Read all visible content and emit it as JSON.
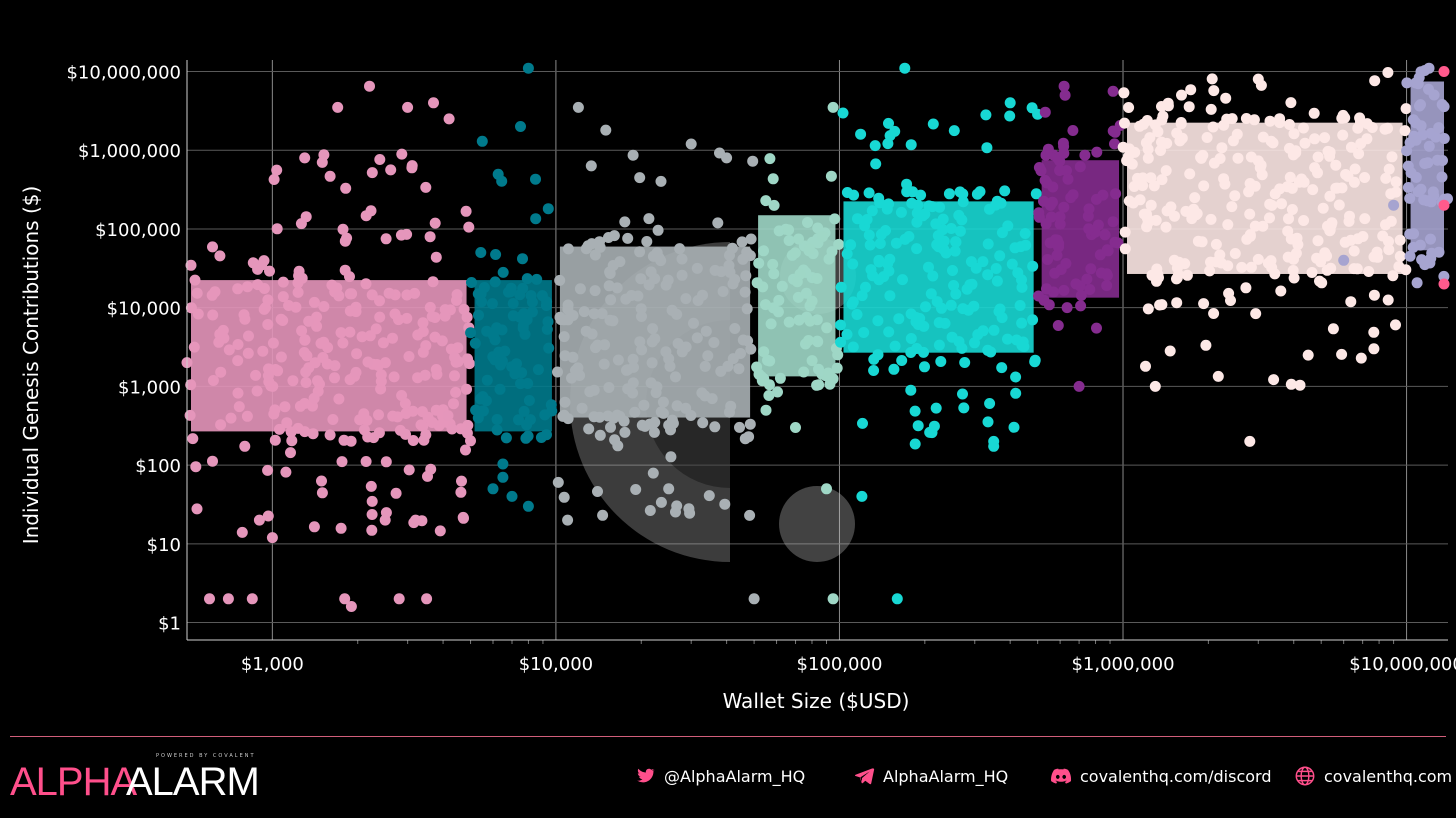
{
  "chart_data": {
    "type": "scatter",
    "title": "",
    "xlabel": "Wallet Size ($USD)",
    "ylabel": "Individual Genesis Contributions ($)",
    "x_scale": "log",
    "y_scale": "log",
    "xlim": [
      500,
      14000000
    ],
    "ylim": [
      0.6,
      14000000
    ],
    "x_ticks": [
      1000,
      10000,
      100000,
      1000000,
      10000000
    ],
    "x_tick_labels": [
      "$1,000",
      "$10,000",
      "$100,000",
      "$1,000,000",
      "$10,000,000"
    ],
    "y_ticks": [
      1,
      10,
      100,
      1000,
      10000,
      100000,
      1000000,
      10000000
    ],
    "y_tick_labels": [
      "$1",
      "$10",
      "$100",
      "$1,000",
      "$10,000",
      "$100,000",
      "$1,000,000",
      "$10,000,000"
    ],
    "grid": true,
    "legend": "none",
    "series": [
      {
        "x_range": [
          500,
          5000
        ],
        "color": "#e596bb",
        "core_y": [
          200,
          30000
        ],
        "spread_y": [
          12,
          1000000
        ],
        "outliers": [
          [
            600,
            2
          ],
          [
            700,
            2
          ],
          [
            850,
            2
          ],
          [
            1800,
            2
          ],
          [
            1900,
            1.6
          ],
          [
            2800,
            2
          ],
          [
            3500,
            2
          ],
          [
            2200,
            6500000
          ],
          [
            1700,
            3500000
          ],
          [
            3000,
            3500000
          ],
          [
            3700,
            4000000
          ],
          [
            4200,
            2500000
          ],
          [
            1300,
            800000
          ],
          [
            1500,
            700000
          ],
          [
            900,
            20
          ],
          [
            1000,
            12
          ],
          [
            2500,
            20
          ],
          [
            3200,
            20
          ]
        ]
      },
      {
        "x_range": [
          5000,
          10000
        ],
        "color": "#007a8c",
        "core_y": [
          200,
          30000
        ],
        "spread_y": [
          40,
          500000
        ],
        "outliers": [
          [
            8000,
            11000000
          ],
          [
            7500,
            2000000
          ],
          [
            5500,
            1300000
          ],
          [
            6000,
            50
          ],
          [
            7000,
            40
          ],
          [
            8000,
            30
          ]
        ]
      },
      {
        "x_range": [
          10000,
          50000
        ],
        "color": "#a9b0b4",
        "core_y": [
          300,
          80000
        ],
        "spread_y": [
          20,
          1000000
        ],
        "outliers": [
          [
            12000,
            3500000
          ],
          [
            15000,
            1800000
          ],
          [
            30000,
            1200000
          ],
          [
            40000,
            800000
          ],
          [
            50000,
            2
          ],
          [
            11000,
            20
          ],
          [
            25000,
            50
          ]
        ]
      },
      {
        "x_range": [
          50000,
          100000
        ],
        "color": "#9fd7c6",
        "core_y": [
          1000,
          200000
        ],
        "spread_y": [
          200,
          1000000
        ],
        "outliers": [
          [
            95000,
            3500000
          ],
          [
            95000,
            2
          ],
          [
            70000,
            300
          ],
          [
            90000,
            50
          ]
        ]
      },
      {
        "x_range": [
          100000,
          500000
        ],
        "color": "#18d8d4",
        "core_y": [
          2000,
          300000
        ],
        "spread_y": [
          150,
          4000000
        ],
        "outliers": [
          [
            170000,
            11000000
          ],
          [
            160000,
            2
          ],
          [
            120000,
            40
          ],
          [
            400000,
            4000000
          ],
          [
            350000,
            200
          ]
        ]
      },
      {
        "x_range": [
          500000,
          1000000
        ],
        "color": "#852c8f",
        "core_y": [
          10000,
          1000000
        ],
        "spread_y": [
          1500,
          6500000
        ],
        "outliers": [
          [
            620000,
            6500000
          ],
          [
            700000,
            1000
          ]
        ]
      },
      {
        "x_range": [
          1000000,
          10000000
        ],
        "color": "#fde8e6",
        "core_y": [
          20000,
          3000000
        ],
        "spread_y": [
          1000,
          11000000
        ],
        "outliers": [
          [
            2800000,
            200
          ],
          [
            4500000,
            2500
          ],
          [
            1200000,
            1800
          ],
          [
            1300000,
            1000
          ],
          [
            3000000,
            8000000
          ]
        ]
      },
      {
        "x_range": [
          10000000,
          14000000
        ],
        "color": "#a6a4d0",
        "core_y": [
          40000,
          10000000
        ],
        "spread_y": [
          20000,
          11000000
        ],
        "outliers": [
          [
            11000000,
            7000000
          ],
          [
            12000000,
            11000000
          ],
          [
            9000000,
            200000
          ],
          [
            6000000,
            40000
          ]
        ]
      }
    ],
    "edge_points": [
      [
        14000000,
        10000000
      ],
      [
        14000000,
        20000
      ],
      [
        14000000,
        200000
      ]
    ],
    "edge_color": "#ff5a8c",
    "watermark_color": "#d9d9d9"
  },
  "footer": {
    "brand_alpha": "ALPHA",
    "brand_alarm": "ALARM",
    "brand_powered": "POWERED BY COVALENT",
    "twitter": "@AlphaAlarm_HQ",
    "telegram": "AlphaAlarm_HQ",
    "discord": "covalenthq.com/discord",
    "website": "covalenthq.com",
    "accent_color": "#ff4f8b"
  }
}
